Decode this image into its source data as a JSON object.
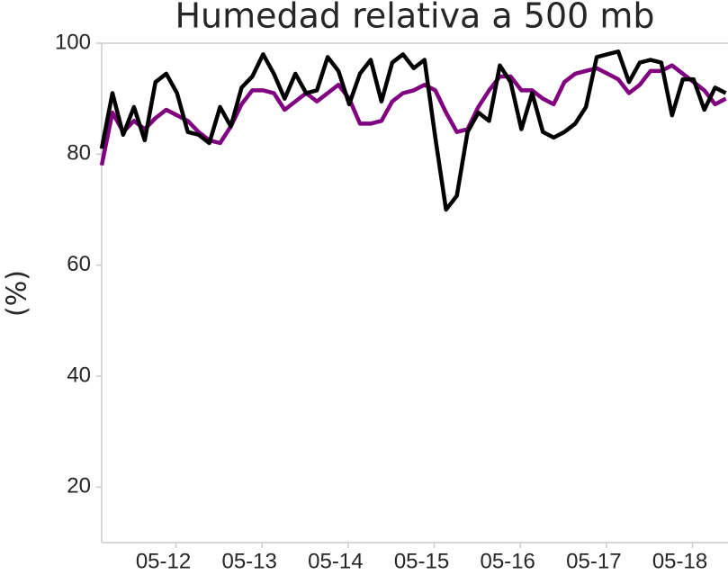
{
  "chart_data": {
    "type": "line",
    "title": "Humedad relativa a 500 mb",
    "ylabel": "(%)",
    "x": [
      0,
      1,
      2,
      3,
      4,
      5,
      6,
      7,
      8,
      9,
      10,
      11,
      12,
      13,
      14,
      15,
      16,
      17,
      18,
      19,
      20,
      21,
      22,
      23,
      24,
      25,
      26,
      27,
      28,
      29,
      30,
      31,
      32,
      33,
      34,
      35,
      36,
      37,
      38,
      39,
      40,
      41,
      42,
      43,
      44,
      45,
      46,
      47,
      48,
      49,
      50,
      51,
      52,
      53,
      54,
      55,
      56,
      57,
      58
    ],
    "xlim": [
      0,
      58.2
    ],
    "xticks": [
      {
        "value": 6.9,
        "label": "05-12"
      },
      {
        "value": 14.9,
        "label": "05-13"
      },
      {
        "value": 22.9,
        "label": "05-14"
      },
      {
        "value": 30.9,
        "label": "05-15"
      },
      {
        "value": 38.9,
        "label": "05-16"
      },
      {
        "value": 46.9,
        "label": "05-17"
      },
      {
        "value": 54.9,
        "label": "05-18"
      }
    ],
    "ylim": [
      10,
      100
    ],
    "yticks": [
      20,
      40,
      60,
      80,
      100
    ],
    "grid": false,
    "series": [
      {
        "color": "#800080",
        "values": [
          78,
          87.5,
          84,
          86,
          84.5,
          86.5,
          88,
          87,
          86,
          84,
          82.5,
          82,
          85,
          89,
          91.5,
          91.5,
          91,
          88,
          89.5,
          91,
          89.5,
          91,
          92.5,
          90,
          85.5,
          85.5,
          86,
          89.5,
          91,
          91.5,
          92.5,
          91.5,
          87.5,
          84,
          84.5,
          88.5,
          91.5,
          94,
          94,
          91.5,
          91.5,
          90,
          89,
          93,
          94.5,
          95,
          95.5,
          94.5,
          93.5,
          91,
          92.5,
          95,
          95,
          96,
          94.5,
          93,
          91.5,
          89,
          90
        ]
      },
      {
        "color": "#000000",
        "values": [
          81,
          91,
          83.5,
          88.5,
          82.5,
          93,
          94.5,
          91,
          84,
          83.5,
          82,
          88.5,
          85,
          92,
          94,
          98,
          94.5,
          90,
          94.5,
          91,
          91.5,
          97.5,
          95,
          89,
          94.5,
          97,
          89.5,
          96.5,
          98,
          95.5,
          97,
          83,
          70,
          72.5,
          84,
          87.5,
          86,
          96,
          93,
          84.5,
          91,
          84,
          83,
          84,
          85.5,
          88.5,
          97.5,
          98,
          98.5,
          93,
          96.5,
          97,
          96.5,
          87,
          93.5,
          93.5,
          88,
          92,
          91
        ]
      }
    ]
  }
}
